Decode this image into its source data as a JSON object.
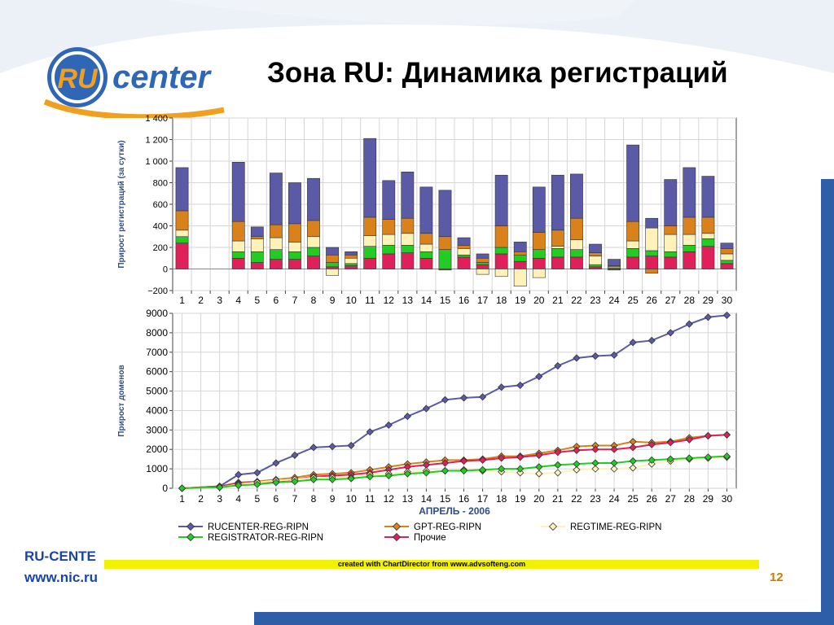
{
  "slide": {
    "title": "Зона RU: Динамика регистраций",
    "footer_name": "RU-CENTE",
    "footer_url": "www.nic.ru",
    "page_number": "12",
    "credit": "created with ChartDirector from www.advsofteng.com"
  },
  "logo": {
    "ru_text": "RU",
    "center_text": "center"
  },
  "colors": {
    "rucenter": "#5a5aa6",
    "gpt": "#d9821c",
    "regtime": "#fff2b8",
    "registrator": "#22cc22",
    "other": "#e0205a",
    "accent_blue": "#2f5ea8",
    "footer_blue": "#1a44a6",
    "credit_yellow": "#f2f200"
  },
  "chart_data": [
    {
      "type": "bar",
      "stacked": true,
      "ylabel": "Прирост регистраций (за сутки)",
      "ylim": [
        -200,
        1400
      ],
      "yticks": [
        -200,
        0,
        200,
        400,
        600,
        800,
        1000,
        1200,
        1400
      ],
      "ytick_labels": [
        "−200",
        "0",
        "200",
        "400",
        "600",
        "800",
        "1 000",
        "1 200",
        "1 400"
      ],
      "categories": [
        "1",
        "2",
        "3",
        "4",
        "5",
        "6",
        "7",
        "8",
        "9",
        "10",
        "11",
        "12",
        "13",
        "14",
        "15",
        "16",
        "17",
        "18",
        "19",
        "20",
        "21",
        "22",
        "23",
        "24",
        "25",
        "26",
        "27",
        "28",
        "29",
        "30"
      ],
      "grid": true,
      "series": [
        {
          "name": "Прочие",
          "color_key": "other",
          "values": [
            240,
            0,
            0,
            100,
            60,
            90,
            90,
            120,
            20,
            30,
            100,
            140,
            150,
            100,
            -10,
            110,
            40,
            140,
            70,
            100,
            110,
            110,
            20,
            -10,
            110,
            120,
            110,
            160,
            210,
            50
          ]
        },
        {
          "name": "REGISTRATOR-REG-RIPN",
          "color_key": "registrator",
          "values": [
            60,
            0,
            0,
            60,
            100,
            90,
            70,
            80,
            40,
            20,
            110,
            80,
            70,
            60,
            180,
            20,
            20,
            60,
            60,
            80,
            80,
            70,
            20,
            10,
            80,
            50,
            50,
            60,
            70,
            30
          ]
        },
        {
          "name": "REGTIME-REG-RIPN",
          "color_key": "regtime",
          "values": [
            60,
            0,
            0,
            100,
            120,
            110,
            90,
            100,
            -60,
            50,
            100,
            100,
            110,
            70,
            0,
            60,
            -50,
            -70,
            -160,
            -80,
            20,
            90,
            80,
            10,
            70,
            210,
            160,
            100,
            50,
            60
          ]
        },
        {
          "name": "GPT-REG-RIPN",
          "color_key": "gpt",
          "values": [
            180,
            0,
            0,
            180,
            20,
            120,
            170,
            150,
            70,
            30,
            170,
            140,
            140,
            100,
            120,
            30,
            40,
            200,
            30,
            160,
            150,
            200,
            30,
            10,
            180,
            -40,
            80,
            160,
            150,
            50
          ]
        },
        {
          "name": "RUCENTER-REG-RIPN",
          "color_key": "rucenter",
          "values": [
            400,
            0,
            0,
            550,
            90,
            480,
            380,
            390,
            70,
            30,
            730,
            360,
            430,
            430,
            430,
            70,
            40,
            470,
            90,
            420,
            510,
            410,
            80,
            60,
            710,
            90,
            430,
            460,
            380,
            50
          ]
        }
      ]
    },
    {
      "type": "line",
      "ylabel": "Прирост доменов",
      "xlabel": "АПРЕЛЬ - 2006",
      "ylim": [
        0,
        9000
      ],
      "yticks": [
        0,
        1000,
        2000,
        3000,
        4000,
        5000,
        6000,
        7000,
        8000,
        9000
      ],
      "x": [
        1,
        2,
        3,
        4,
        5,
        6,
        7,
        8,
        9,
        10,
        11,
        12,
        13,
        14,
        15,
        16,
        17,
        18,
        19,
        20,
        21,
        22,
        23,
        24,
        25,
        26,
        27,
        28,
        29,
        30
      ],
      "grid": true,
      "legend_position": "bottom",
      "series": [
        {
          "name": "RUCENTER-REG-RIPN",
          "color_key": "rucenter",
          "values": [
            0,
            null,
            100,
            700,
            800,
            1300,
            1700,
            2100,
            2150,
            2200,
            2900,
            3250,
            3700,
            4100,
            4550,
            4650,
            4700,
            5200,
            5300,
            5750,
            6300,
            6700,
            6800,
            6850,
            7500,
            7600,
            8000,
            8450,
            8800,
            8900
          ]
        },
        {
          "name": "GPT-REG-RIPN",
          "color_key": "gpt",
          "values": [
            0,
            null,
            100,
            300,
            350,
            450,
            550,
            700,
            750,
            800,
            950,
            1100,
            1250,
            1350,
            1450,
            1450,
            1500,
            1650,
            1650,
            1800,
            1950,
            2150,
            2200,
            2200,
            2400,
            2350,
            2400,
            2600,
            2700,
            2750
          ]
        },
        {
          "name": "REGTIME-REG-RIPN",
          "color_key": "regtime",
          "values": [
            0,
            null,
            50,
            200,
            300,
            400,
            450,
            550,
            550,
            550,
            700,
            750,
            850,
            900,
            900,
            950,
            900,
            850,
            800,
            750,
            800,
            950,
            1000,
            1000,
            1050,
            1250,
            1400,
            1500,
            1550,
            1600
          ]
        },
        {
          "name": "REGISTRATOR-REG-RIPN",
          "color_key": "registrator",
          "values": [
            0,
            null,
            50,
            150,
            200,
            300,
            350,
            450,
            450,
            500,
            600,
            650,
            750,
            800,
            900,
            900,
            950,
            1000,
            1000,
            1100,
            1200,
            1250,
            1300,
            1300,
            1400,
            1450,
            1500,
            1550,
            1600,
            1650
          ]
        },
        {
          "name": "Прочие",
          "color_key": "other",
          "values": [
            0,
            null,
            100,
            250,
            300,
            350,
            450,
            600,
            650,
            700,
            800,
            950,
            1100,
            1200,
            1300,
            1400,
            1450,
            1550,
            1600,
            1700,
            1850,
            1950,
            2000,
            2000,
            2100,
            2250,
            2350,
            2500,
            2700,
            2750
          ]
        }
      ],
      "legend_order": [
        "RUCENTER-REG-RIPN",
        "GPT-REG-RIPN",
        "REGTIME-REG-RIPN",
        "REGISTRATOR-REG-RIPN",
        "Прочие"
      ]
    }
  ]
}
